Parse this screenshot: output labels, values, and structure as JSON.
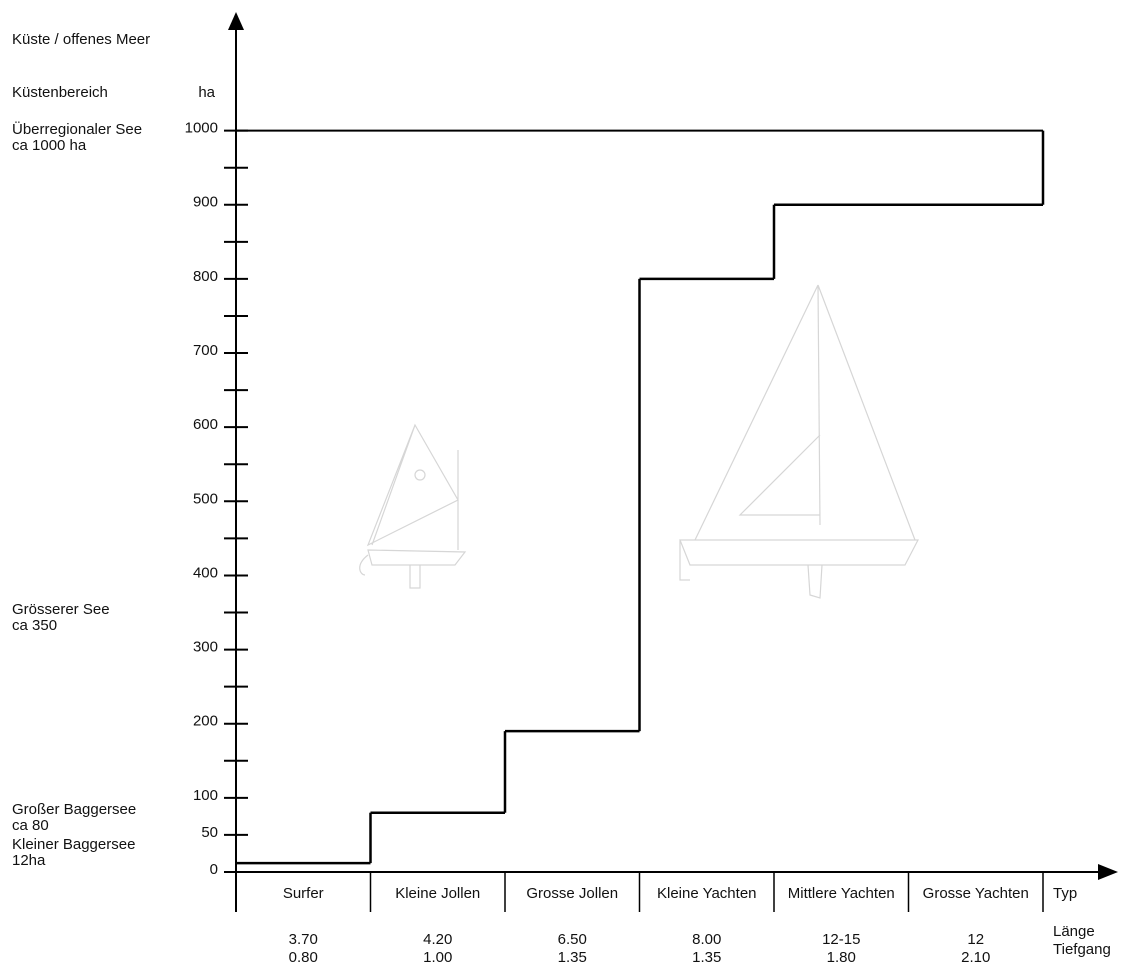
{
  "chart_data": {
    "type": "step",
    "y_unit": "ha",
    "annotations": [
      [
        "Küste / offenes Meer"
      ],
      [
        "Küstenbereich"
      ],
      [
        "Überregionaler See",
        "ca 1000 ha"
      ],
      [
        "Grösserer See",
        "ca 350"
      ],
      [
        "Großer Baggersee",
        "ca 80"
      ],
      [
        "Kleiner Baggersee",
        "12ha"
      ]
    ],
    "categories": [
      "Surfer",
      "Kleine Jollen",
      "Grosse Jollen",
      "Kleine Yachten",
      "Mittlere Yachten",
      "Grosse Yachten"
    ],
    "values": [
      12,
      80,
      190,
      800,
      900,
      900
    ],
    "reference_line": 1000,
    "color": "#000000",
    "ylim": [
      0,
      1160
    ],
    "yticks": [
      0,
      50,
      100,
      200,
      300,
      400,
      500,
      600,
      700,
      800,
      900,
      1000
    ],
    "minor_yticks": [
      150,
      250,
      350,
      450,
      550,
      650,
      750,
      850,
      950
    ],
    "row_headers": [
      "Typ",
      "Länge",
      "Tiefgang"
    ],
    "laenge": [
      "3.70",
      "4.20",
      "6.50",
      "8.00",
      "12-15",
      "12"
    ],
    "tiefgang": [
      "0.80",
      "1.00",
      "1.35",
      "1.35",
      "1.80",
      "2.10"
    ]
  }
}
